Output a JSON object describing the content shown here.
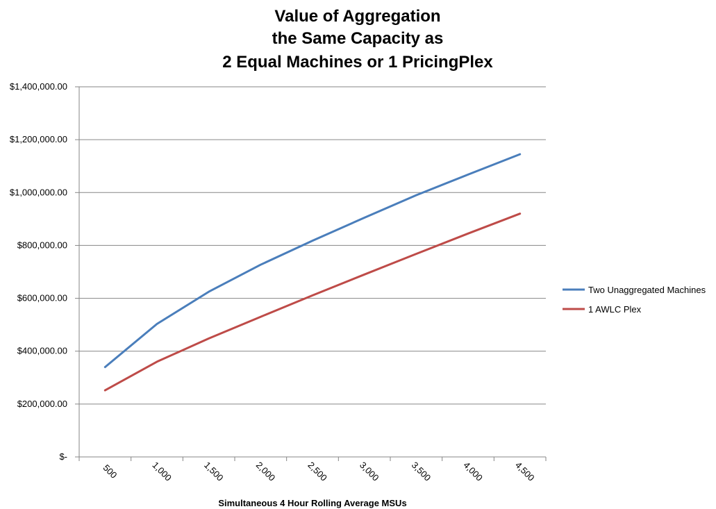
{
  "chart_data": {
    "type": "line",
    "title_lines": [
      "Value of Aggregation",
      "the Same Capacity as",
      "2 Equal Machines or 1 PricingPlex"
    ],
    "xlabel": "Simultaneous 4 Hour Rolling Average MSUs",
    "ylabel": "",
    "categories": [
      "500",
      "1,000",
      "1,500",
      "2,000",
      "2,500",
      "3,000",
      "3,500",
      "4,000",
      "4,500"
    ],
    "y_ticks": [
      "$-",
      "$200,000.00",
      "$400,000.00",
      "$600,000.00",
      "$800,000.00",
      "$1,000,000.00",
      "$1,200,000.00",
      "$1,400,000.00"
    ],
    "ylim": [
      0,
      1400000
    ],
    "y_step": 200000,
    "grid": true,
    "legend_position": "right",
    "series": [
      {
        "name": "Two Unaggregated Machines",
        "color": "#4a7ebb",
        "values": [
          340000,
          503000,
          625000,
          727000,
          818000,
          905000,
          990000,
          1068000,
          1145000
        ]
      },
      {
        "name": "1 AWLC Plex",
        "color": "#be4b48",
        "values": [
          252000,
          360000,
          448000,
          530000,
          611000,
          690000,
          768000,
          845000,
          920000
        ]
      }
    ]
  }
}
